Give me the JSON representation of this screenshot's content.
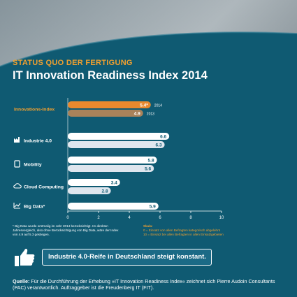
{
  "header": {
    "subtitle": "STATUS QUO DER FERTIGUNG",
    "title": "IT Innovation Readiness Index 2014"
  },
  "colors": {
    "teal": "#0f5a72",
    "orange": "#e8892e",
    "brown": "#a9825a",
    "bar_light": "#dfe6ee",
    "accent_text": "#f0a030"
  },
  "chart_data": {
    "type": "bar",
    "orientation": "horizontal",
    "categories": [
      "Innovations-Index",
      "Industrie 4.0",
      "Mobility",
      "Cloud Computing",
      "Big Data*"
    ],
    "category_icons": [
      "none",
      "factory-icon",
      "tablet-icon",
      "cloud-icon",
      "chart-icon"
    ],
    "series": [
      {
        "name": "2014",
        "values": [
          5.4,
          6.6,
          5.8,
          3.4,
          5.9
        ]
      },
      {
        "name": "2013",
        "values": [
          4.9,
          6.3,
          5.6,
          2.8,
          null
        ]
      }
    ],
    "value_labels": [
      [
        "5.4*",
        "4.9"
      ],
      [
        "6.6",
        "6.3"
      ],
      [
        "5.8",
        "5.6"
      ],
      [
        "3.4",
        "2.8"
      ],
      [
        "5.9"
      ]
    ],
    "series_labels": [
      "2014",
      "2013"
    ],
    "xlim": [
      0,
      10
    ],
    "xticks": [
      0,
      2,
      4,
      6,
      8,
      10
    ],
    "xlabel": "",
    "ylabel": ""
  },
  "footnote": "* Big Data wurde erstmalig im Jahr 2014 berücksichtigt. Im direkten Jahresvergleich, also ohne Berücksichtigung von Big Data, wäre der Index von 4.9 auf 5.3 gestiegen.",
  "scale": {
    "heading": "Skala:",
    "line1": "0 = Einsatz von allen Befragten kategorisch abgelehnt",
    "line2": "10 = Einsatz bei allen Befragten in allen Einsatzgebieten"
  },
  "banner": "Industrie 4.0-Reife in Deutschland steigt konstant.",
  "source": {
    "label": "Quelle:",
    "text": "Für die Durchführung der Erhebung »IT Innovation Readiness Index« zeichnet sich Pierre Audoin Consultants (PAC) verantwortlich. Auftraggeber ist die Freudenberg IT (FIT)."
  }
}
